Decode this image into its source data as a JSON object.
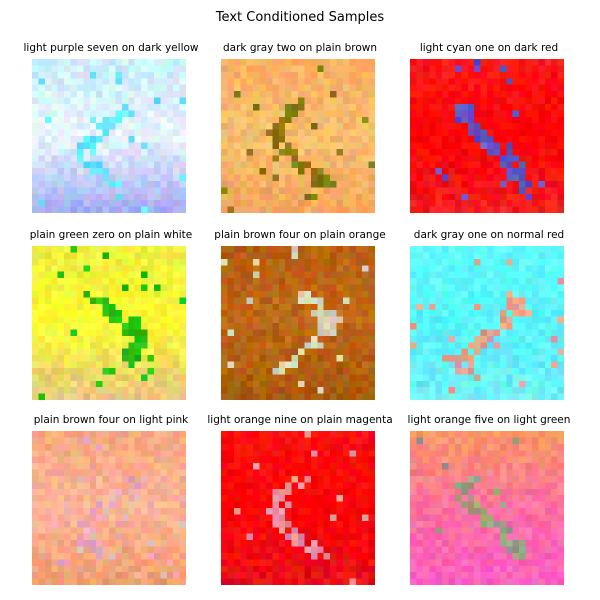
{
  "figure": {
    "title": "Text Conditioned Samples",
    "samples": [
      {
        "caption": "light purple seven on dark yellow",
        "bg": [
          "#c8f0ff",
          "#e8f6ff",
          "#a8b0f5"
        ],
        "fg": "#60e8ff"
      },
      {
        "caption": "dark gray two on plain brown",
        "bg": [
          "#ffb060",
          "#f8c070",
          "#f6a85c"
        ],
        "fg": "#8a7a10"
      },
      {
        "caption": "light cyan one on dark red",
        "bg": [
          "#ff1a1a",
          "#ff0000",
          "#f22020"
        ],
        "fg": "#6055c8"
      },
      {
        "caption": "plain green zero on plain white",
        "bg": [
          "#f0f040",
          "#ffff30",
          "#e8c880"
        ],
        "fg": "#20c010"
      },
      {
        "caption": "plain brown four on plain orange",
        "bg": [
          "#b86010",
          "#c06a18",
          "#a85a0c"
        ],
        "fg": "#d8d0b8"
      },
      {
        "caption": "dark gray one on normal red",
        "bg": [
          "#60ffff",
          "#58f8ff",
          "#70f0f8"
        ],
        "fg": "#e8a090"
      },
      {
        "caption": "plain brown four on light pink",
        "bg": [
          "#f8a880",
          "#ffb898",
          "#f0a070"
        ],
        "fg": "#e8b0c0"
      },
      {
        "caption": "light orange nine on plain magenta",
        "bg": [
          "#ff1010",
          "#ff0000",
          "#e81018"
        ],
        "fg": "#e890a0"
      },
      {
        "caption": "light orange five on light green",
        "bg": [
          "#ff9868",
          "#ff70a0",
          "#ff60c0"
        ],
        "fg": "#98a080"
      }
    ]
  }
}
